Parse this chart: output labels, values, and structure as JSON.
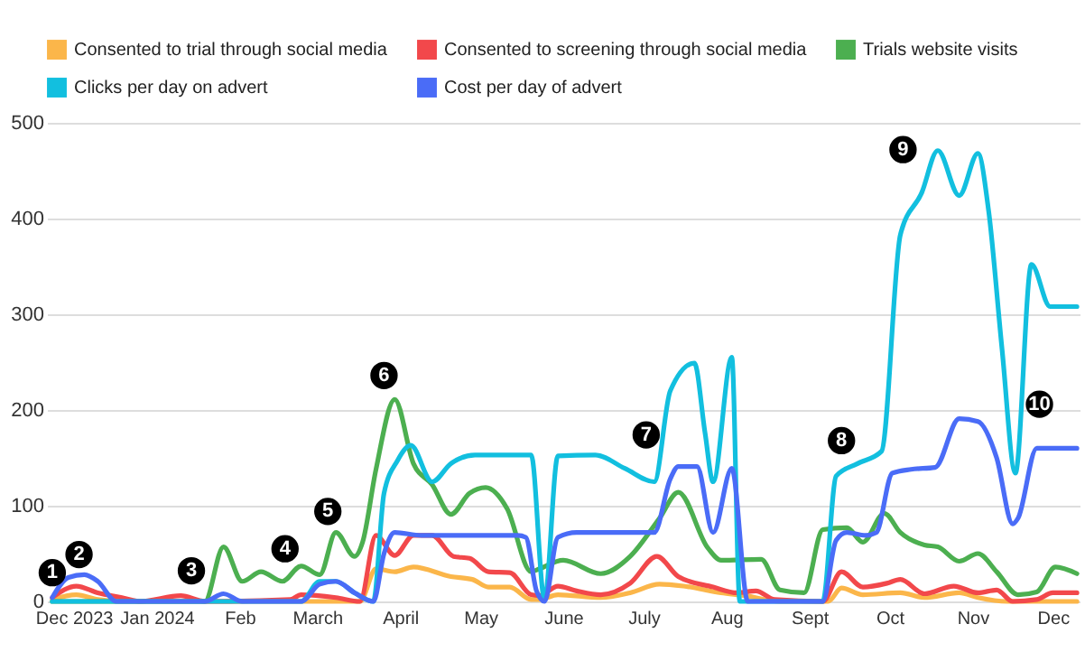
{
  "chart_data": {
    "type": "line",
    "legend": "top",
    "grid": "y",
    "marker": "none",
    "line_style": "solid",
    "xlim": [
      "2023-11-21",
      "2024-12-11"
    ],
    "xticks": [
      {
        "value": "2023-12-01",
        "label": "Dec 2023"
      },
      {
        "value": "2024-01-01",
        "label": "Jan 2024"
      },
      {
        "value": "2024-02-01",
        "label": "Feb"
      },
      {
        "value": "2024-03-01",
        "label": "March"
      },
      {
        "value": "2024-04-01",
        "label": "April"
      },
      {
        "value": "2024-05-01",
        "label": "May"
      },
      {
        "value": "2024-06-01",
        "label": "June"
      },
      {
        "value": "2024-07-01",
        "label": "July"
      },
      {
        "value": "2024-08-01",
        "label": "Aug"
      },
      {
        "value": "2024-09-01",
        "label": "Sept"
      },
      {
        "value": "2024-10-01",
        "label": "Oct"
      },
      {
        "value": "2024-11-01",
        "label": "Nov"
      },
      {
        "value": "2024-12-01",
        "label": "Dec"
      }
    ],
    "ylim": [
      0,
      500
    ],
    "yticks": [
      0,
      100,
      200,
      300,
      400,
      500
    ],
    "series": [
      {
        "name": "Consented to trial through social media",
        "color": "#fbb64a",
        "x": [
          "2023-11-23",
          "2023-12-02",
          "2023-12-10",
          "2023-12-19",
          "2024-03-17",
          "2024-03-23",
          "2024-03-30",
          "2024-04-06",
          "2024-04-20",
          "2024-04-28",
          "2024-05-04",
          "2024-05-12",
          "2024-05-20",
          "2024-05-23",
          "2024-05-30",
          "2024-06-15",
          "2024-06-26",
          "2024-07-07",
          "2024-07-16",
          "2024-07-30",
          "2024-08-08",
          "2024-08-21",
          "2024-09-08",
          "2024-09-13",
          "2024-09-21",
          "2024-10-05",
          "2024-10-14",
          "2024-10-27",
          "2024-11-03",
          "2024-11-14",
          "2024-12-10"
        ],
        "values": [
          2,
          7,
          2,
          0,
          0,
          34,
          31,
          36,
          26,
          23,
          15,
          15,
          2,
          2,
          7,
          4,
          9,
          18,
          16,
          9,
          6,
          0,
          0,
          14,
          7,
          9,
          4,
          9,
          4,
          0,
          0
        ]
      },
      {
        "name": "Consented to screening through social media",
        "color": "#f2484b",
        "x": [
          "2023-11-23",
          "2023-12-02",
          "2023-12-10",
          "2023-12-19",
          "2023-12-26",
          "2024-01-10",
          "2024-01-19",
          "2024-02-20",
          "2024-02-24",
          "2024-03-08",
          "2024-03-17",
          "2024-03-23",
          "2024-03-30",
          "2024-04-06",
          "2024-04-13",
          "2024-04-21",
          "2024-04-27",
          "2024-05-04",
          "2024-05-12",
          "2024-05-20",
          "2024-05-23",
          "2024-05-30",
          "2024-06-06",
          "2024-06-15",
          "2024-06-26",
          "2024-07-06",
          "2024-07-14",
          "2024-07-27",
          "2024-08-05",
          "2024-08-12",
          "2024-08-19",
          "2024-09-06",
          "2024-09-13",
          "2024-09-21",
          "2024-09-30",
          "2024-10-05",
          "2024-10-14",
          "2024-10-25",
          "2024-11-03",
          "2024-11-10",
          "2024-11-16",
          "2024-11-25",
          "2024-12-01",
          "2024-12-10"
        ],
        "values": [
          4,
          16,
          9,
          4,
          0,
          6,
          0,
          2,
          7,
          4,
          0,
          69,
          48,
          69,
          69,
          47,
          45,
          31,
          30,
          7,
          6,
          16,
          11,
          7,
          19,
          47,
          26,
          15,
          9,
          11,
          2,
          0,
          31,
          15,
          19,
          23,
          8,
          16,
          9,
          12,
          0,
          2,
          9,
          9
        ]
      },
      {
        "name": "Trials website visits",
        "color": "#4caf50",
        "x": [
          "2023-11-23",
          "2024-01-19",
          "2024-01-26",
          "2024-02-02",
          "2024-02-09",
          "2024-02-17",
          "2024-02-24",
          "2024-03-02",
          "2024-03-08",
          "2024-03-15",
          "2024-03-18",
          "2024-03-23",
          "2024-03-30",
          "2024-04-06",
          "2024-04-13",
          "2024-04-20",
          "2024-04-27",
          "2024-05-03",
          "2024-05-11",
          "2024-05-20",
          "2024-05-23",
          "2024-06-01",
          "2024-06-15",
          "2024-06-26",
          "2024-07-07",
          "2024-07-14",
          "2024-07-25",
          "2024-07-30",
          "2024-08-14",
          "2024-08-21",
          "2024-08-30",
          "2024-09-06",
          "2024-09-15",
          "2024-09-21",
          "2024-09-29",
          "2024-10-05",
          "2024-10-14",
          "2024-10-19",
          "2024-10-27",
          "2024-11-03",
          "2024-11-10",
          "2024-11-18",
          "2024-11-25",
          "2024-12-02",
          "2024-12-10"
        ],
        "values": [
          0,
          0,
          57,
          21,
          31,
          21,
          37,
          28,
          72,
          47,
          62,
          138,
          211,
          144,
          122,
          91,
          113,
          119,
          97,
          31,
          34,
          43,
          29,
          47,
          87,
          114,
          56,
          43,
          44,
          12,
          9,
          75,
          77,
          62,
          92,
          72,
          59,
          57,
          42,
          50,
          31,
          7,
          10,
          36,
          29
        ]
      },
      {
        "name": "Clicks per day on advert",
        "color": "#12bfdf",
        "x": [
          "2023-11-23",
          "2024-02-24",
          "2024-03-02",
          "2024-03-08",
          "2024-03-15",
          "2024-03-22",
          "2024-03-26",
          "2024-03-31",
          "2024-04-05",
          "2024-04-13",
          "2024-04-20",
          "2024-04-29",
          "2024-05-15",
          "2024-05-20",
          "2024-05-25",
          "2024-05-30",
          "2024-06-13",
          "2024-06-24",
          "2024-07-05",
          "2024-07-11",
          "2024-07-20",
          "2024-07-24",
          "2024-07-27",
          "2024-08-03",
          "2024-08-06",
          "2024-09-06",
          "2024-09-11",
          "2024-09-19",
          "2024-09-28",
          "2024-10-05",
          "2024-10-13",
          "2024-10-19",
          "2024-10-27",
          "2024-11-03",
          "2024-11-07",
          "2024-11-12",
          "2024-11-17",
          "2024-11-23",
          "2024-11-30",
          "2024-12-10"
        ],
        "values": [
          0,
          0,
          21,
          21,
          9,
          0,
          113,
          147,
          163,
          125,
          144,
          153,
          153,
          153,
          2,
          152,
          153,
          139,
          125,
          220,
          249,
          176,
          125,
          255,
          0,
          0,
          131,
          144,
          157,
          383,
          427,
          471,
          424,
          468,
          408,
          264,
          134,
          352,
          308,
          308
        ]
      },
      {
        "name": "Cost per day of advert",
        "color": "#4a6cf7",
        "x": [
          "2023-11-23",
          "2023-11-29",
          "2023-12-05",
          "2023-12-10",
          "2023-12-17",
          "2024-01-19",
          "2024-01-26",
          "2024-02-02",
          "2024-02-24",
          "2024-03-02",
          "2024-03-08",
          "2024-03-15",
          "2024-03-22",
          "2024-03-26",
          "2024-03-30",
          "2024-04-09",
          "2024-05-15",
          "2024-05-18",
          "2024-05-22",
          "2024-05-25",
          "2024-05-30",
          "2024-06-06",
          "2024-07-05",
          "2024-07-11",
          "2024-07-14",
          "2024-07-21",
          "2024-07-27",
          "2024-08-03",
          "2024-08-09",
          "2024-09-06",
          "2024-09-11",
          "2024-09-15",
          "2024-09-22",
          "2024-09-26",
          "2024-10-02",
          "2024-10-09",
          "2024-10-18",
          "2024-10-27",
          "2024-11-03",
          "2024-11-10",
          "2024-11-16",
          "2024-11-18",
          "2024-11-25",
          "2024-12-10"
        ],
        "values": [
          4,
          25,
          28,
          21,
          0,
          0,
          8,
          0,
          0,
          18,
          21,
          9,
          0,
          50,
          72,
          69,
          69,
          67,
          11,
          0,
          67,
          72,
          72,
          128,
          141,
          141,
          72,
          139,
          0,
          0,
          64,
          72,
          69,
          72,
          134,
          138,
          140,
          191,
          188,
          150,
          81,
          87,
          160,
          160
        ]
      }
    ],
    "annotations": [
      {
        "text": "1",
        "x": "2023-11-23",
        "y": 30
      },
      {
        "text": "2",
        "x": "2023-12-03",
        "y": 49
      },
      {
        "text": "3",
        "x": "2024-01-14",
        "y": 32
      },
      {
        "text": "4",
        "x": "2024-02-18",
        "y": 55
      },
      {
        "text": "5",
        "x": "2024-03-05",
        "y": 94
      },
      {
        "text": "6",
        "x": "2024-03-26",
        "y": 236
      },
      {
        "text": "7",
        "x": "2024-07-02",
        "y": 174
      },
      {
        "text": "8",
        "x": "2024-09-13",
        "y": 168
      },
      {
        "text": "9",
        "x": "2024-10-06",
        "y": 472
      },
      {
        "text": "10",
        "x": "2024-11-26",
        "y": 206
      }
    ]
  }
}
